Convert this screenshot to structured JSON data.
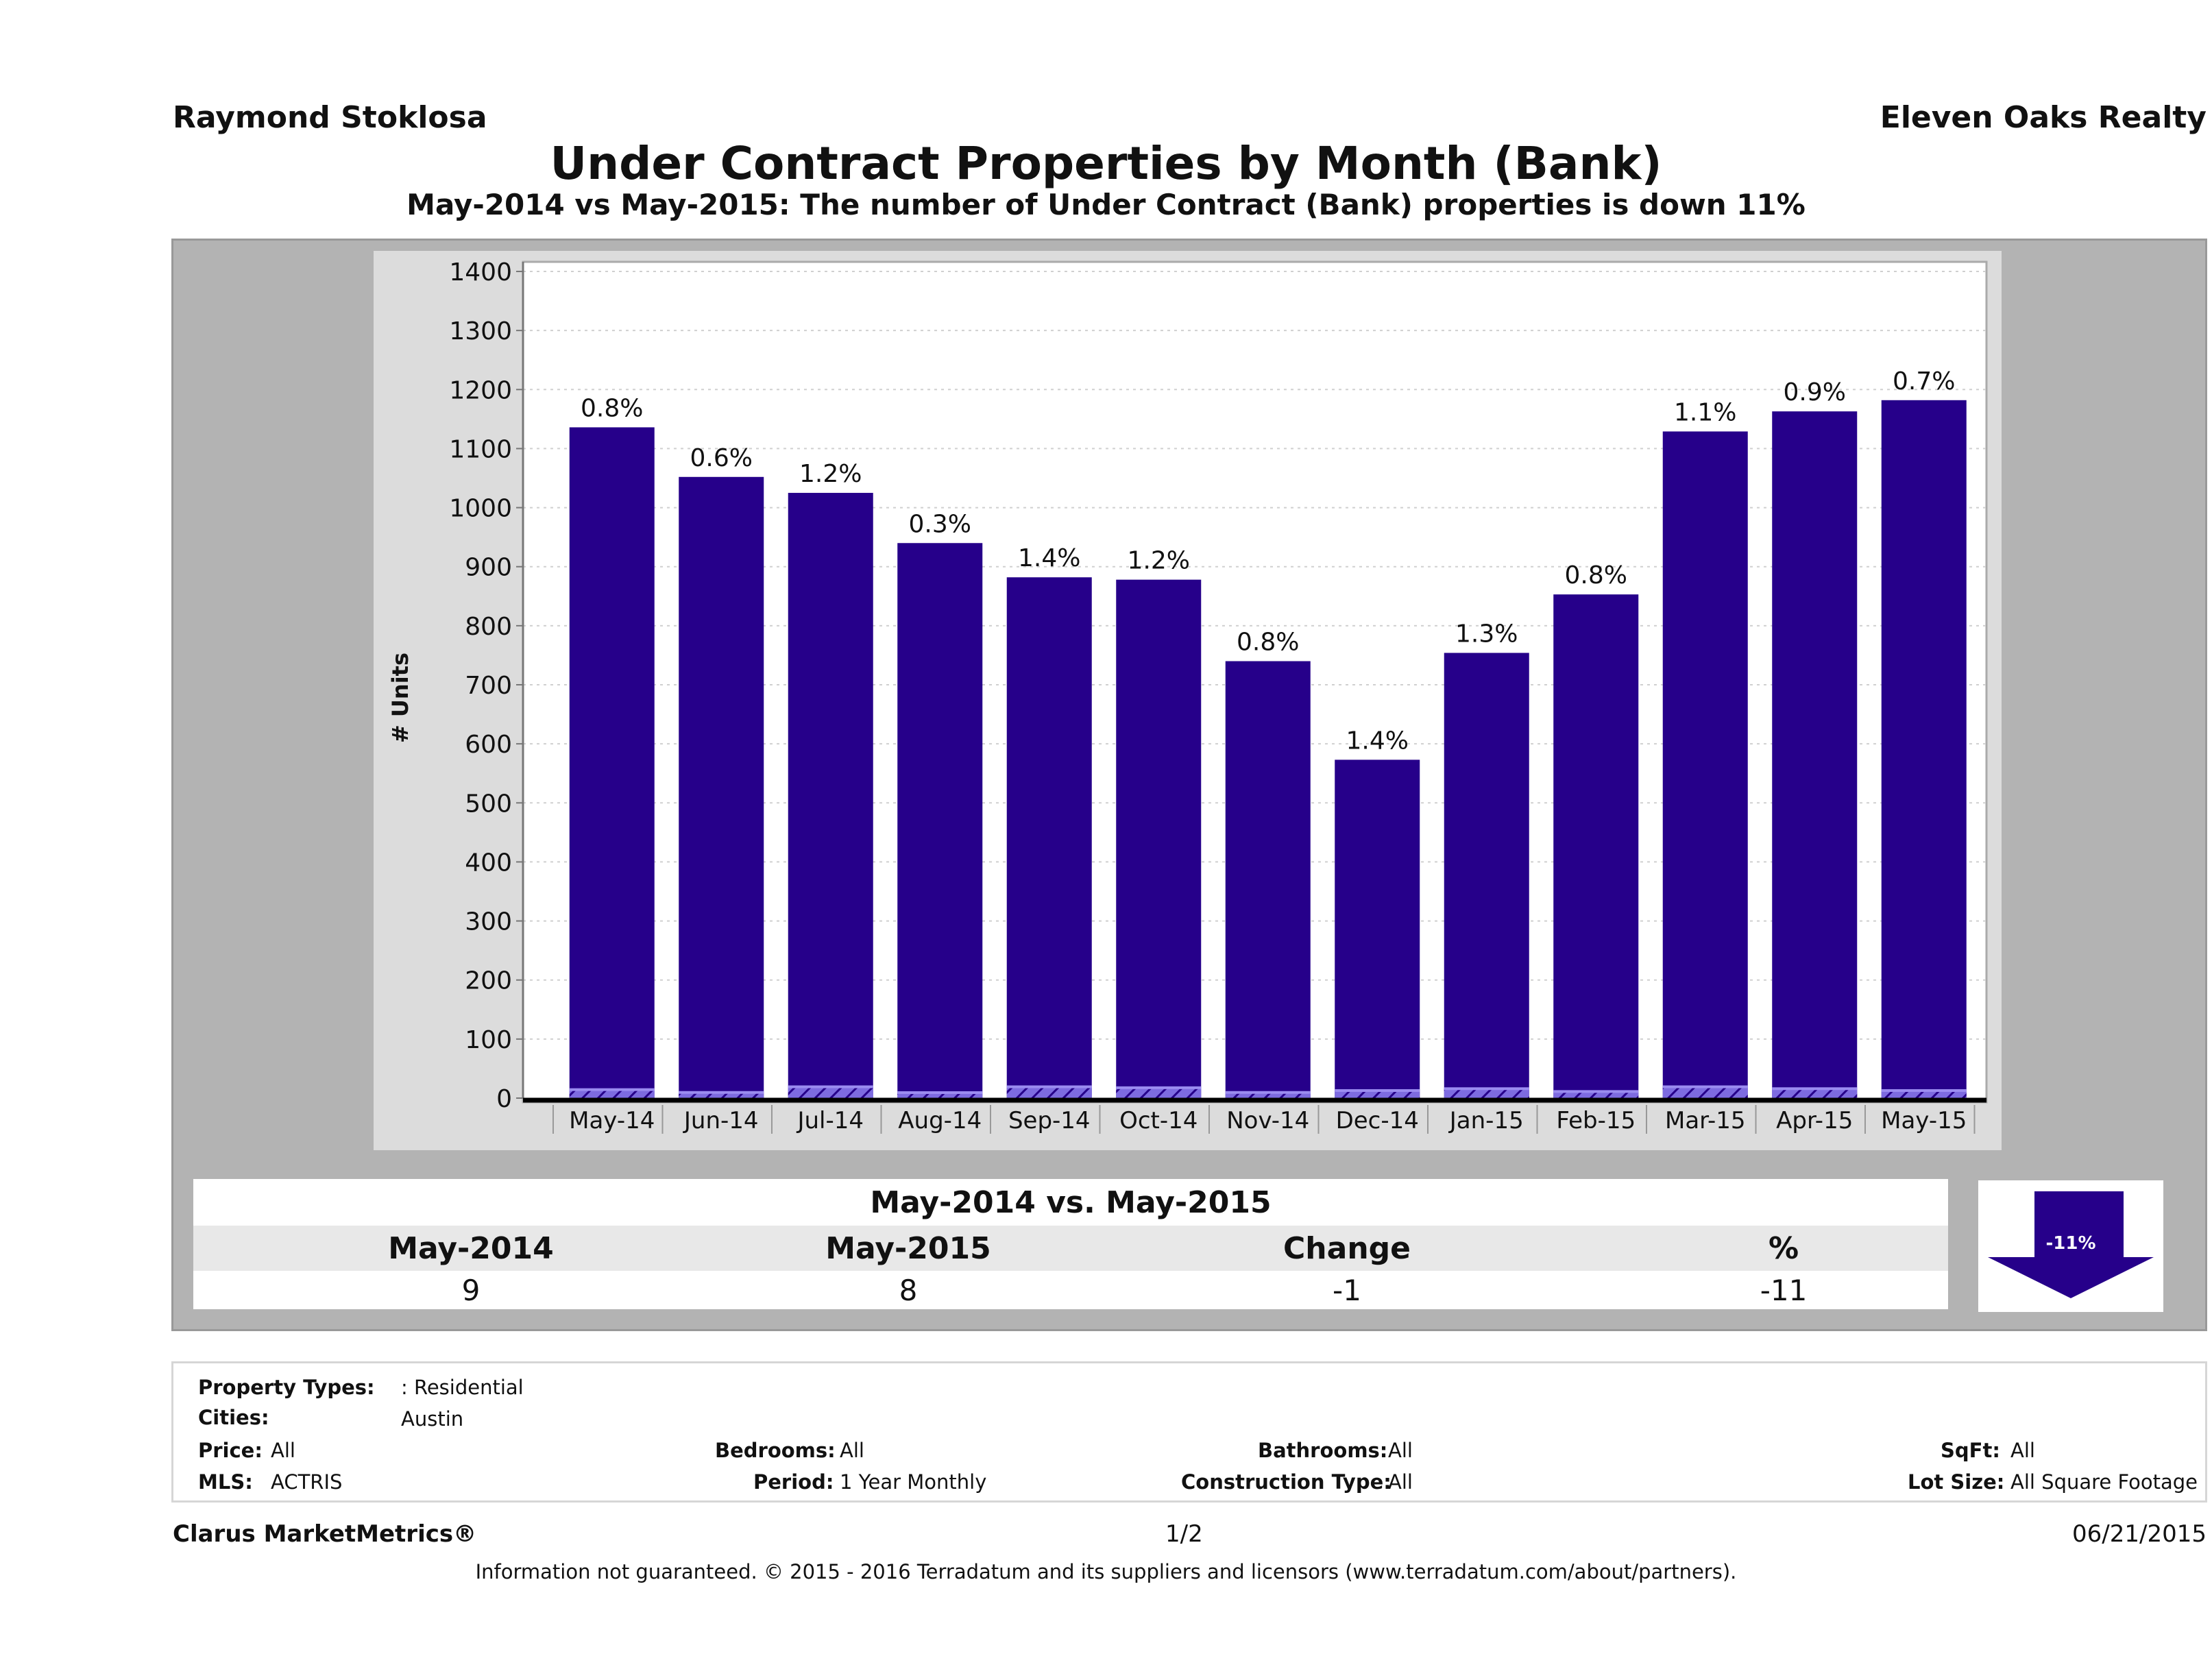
{
  "header": {
    "agent_name": "Raymond Stoklosa",
    "company_name": "Eleven Oaks Realty"
  },
  "chart_data": {
    "type": "bar",
    "title": "Under Contract Properties by Month (Bank)",
    "subtitle": "May-2014 vs May-2015: The number of Under Contract (Bank)  properties is down 11%",
    "xlabel": "",
    "ylabel": "# Units",
    "ylim": [
      0,
      1400
    ],
    "yticks": [
      0,
      100,
      200,
      300,
      400,
      500,
      600,
      700,
      800,
      900,
      1000,
      1100,
      1200,
      1300,
      1400
    ],
    "grid": true,
    "categories": [
      "May-14",
      "Jun-14",
      "Jul-14",
      "Aug-14",
      "Sep-14",
      "Oct-14",
      "Nov-14",
      "Dec-14",
      "Jan-15",
      "Feb-15",
      "Mar-15",
      "Apr-15",
      "May-15"
    ],
    "series": [
      {
        "name": "Total Under Contract",
        "color": "#26008a",
        "values": [
          1136,
          1052,
          1025,
          940,
          882,
          878,
          740,
          573,
          754,
          853,
          1129,
          1163,
          1182
        ]
      },
      {
        "name": "Bank",
        "color": "#9b8cf0",
        "values": [
          9,
          6,
          12,
          3,
          12,
          11,
          6,
          8,
          10,
          7,
          12,
          10,
          8
        ]
      }
    ],
    "data_labels": [
      "0.8%",
      "0.6%",
      "1.2%",
      "0.3%",
      "1.4%",
      "1.2%",
      "0.8%",
      "1.4%",
      "1.3%",
      "0.8%",
      "1.1%",
      "0.9%",
      "0.7%"
    ]
  },
  "summary": {
    "title": "May-2014 vs. May-2015",
    "headers": [
      "May-2014",
      "May-2015",
      "Change",
      "%"
    ],
    "values": [
      "9",
      "8",
      "-1",
      "-11"
    ],
    "indicator": {
      "label": "-11%",
      "direction": "down",
      "color": "#26008a"
    }
  },
  "filters": {
    "property_types": {
      "label": "Property Types:",
      "value": ": Residential"
    },
    "cities": {
      "label": "Cities:",
      "value": "Austin"
    },
    "price": {
      "label": "Price:",
      "value": "All"
    },
    "bedrooms": {
      "label": "Bedrooms:",
      "value": "All"
    },
    "bathrooms": {
      "label": "Bathrooms:",
      "value": "All"
    },
    "sqft": {
      "label": "SqFt:",
      "value": "All"
    },
    "mls": {
      "label": "MLS:",
      "value": "ACTRIS"
    },
    "period": {
      "label": "Period:",
      "value": "1 Year Monthly"
    },
    "construction_type": {
      "label": "Construction Type:",
      "value": "All"
    },
    "lot_size": {
      "label": "Lot Size:",
      "value": "All Square Footage"
    }
  },
  "footer": {
    "brand": "Clarus MarketMetrics®",
    "page": "1/2",
    "date": "06/21/2015",
    "disclaimer": "Information not guaranteed. © 2015 - 2016 Terradatum and its suppliers and licensors (www.terradatum.com/about/partners)."
  }
}
